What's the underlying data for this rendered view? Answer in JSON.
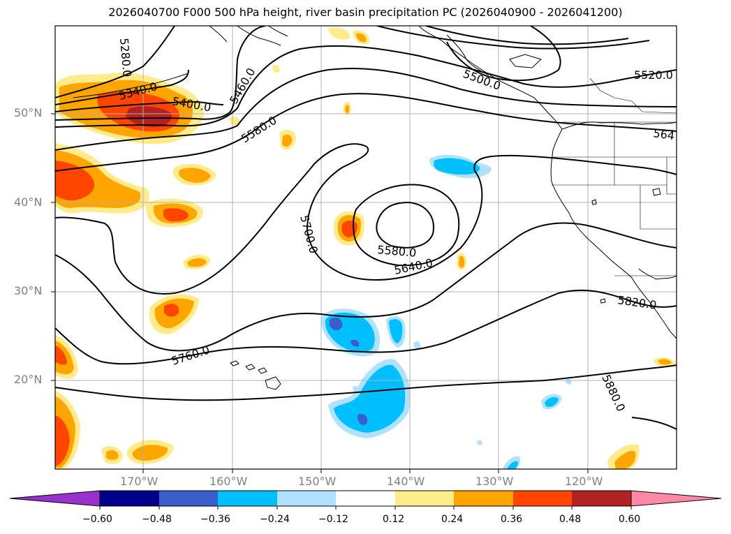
{
  "title": "2026040700 F000 500 hPa height, river basin precipitation PC (2026040900 - 2026041200)",
  "latitude_labels": [
    "50°N",
    "40°N",
    "30°N",
    "20°N"
  ],
  "longitude_labels": [
    "170°W",
    "160°W",
    "150°W",
    "140°W",
    "130°W",
    "120°W"
  ],
  "contour_labels": [
    "5280.0",
    "5340.0",
    "5400.0",
    "5460.0",
    "5580.0",
    "5500.0",
    "5520.0",
    "564",
    "5700.0",
    "5580.0",
    "5640.0",
    "5760.0",
    "5820.0",
    "5880.0"
  ],
  "colorbar": {
    "ticks": [
      "−0.60",
      "−0.48",
      "−0.36",
      "−0.24",
      "−0.12",
      "0.12",
      "0.24",
      "0.36",
      "0.48",
      "0.60"
    ],
    "colors": [
      "#9932cc",
      "#00008b",
      "#3a5fcd",
      "#00bfff",
      "#b0e2ff",
      "#ffffff",
      "#ffeb8a",
      "#ffa500",
      "#ff4500",
      "#b22222",
      "#ff88a8"
    ]
  },
  "legend_colors": {
    "pos_012": "#ffeb8a",
    "pos_024": "#ffa500",
    "pos_036": "#ff4500",
    "pos_048": "#b22222",
    "neg_012": "#b0e2ff",
    "neg_024": "#00bfff",
    "neg_036": "#3a5fcd"
  }
}
